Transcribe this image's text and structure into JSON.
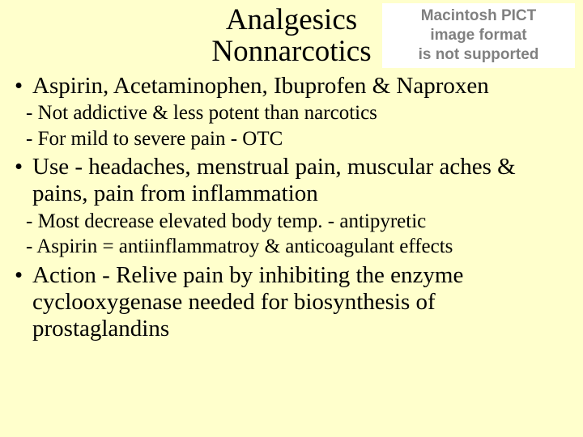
{
  "colors": {
    "background": "#ffffcc",
    "text": "#000000",
    "pict_bg": "#ffffff",
    "pict_text": "#808080"
  },
  "fonts": {
    "body_family": "Times New Roman",
    "pict_family": "Arial",
    "title_size_pt": 37,
    "bullet_size_pt": 29,
    "sub_size_pt": 25,
    "pict_size_pt": 19
  },
  "pict_placeholder": {
    "line1": "Macintosh PICT",
    "line2": "image format",
    "line3": "is not supported"
  },
  "titles": {
    "line1": "Analgesics",
    "line2": "Nonnarcotics"
  },
  "content": {
    "bullet1": "Aspirin, Acetaminophen, Ibuprofen & Naproxen",
    "sub1a": "- Not addictive & less potent than narcotics",
    "sub1b": "- For mild to severe pain - OTC",
    "bullet2": "Use - headaches, menstrual pain, muscular aches & pains, pain from inflammation",
    "sub2a": "- Most decrease elevated body temp. - antipyretic",
    "sub2b": "- Aspirin = antiinflammatroy & anticoagulant effects",
    "bullet3": "Action - Relive pain by inhibiting the enzyme cyclooxygenase needed for biosynthesis of prostaglandins"
  }
}
